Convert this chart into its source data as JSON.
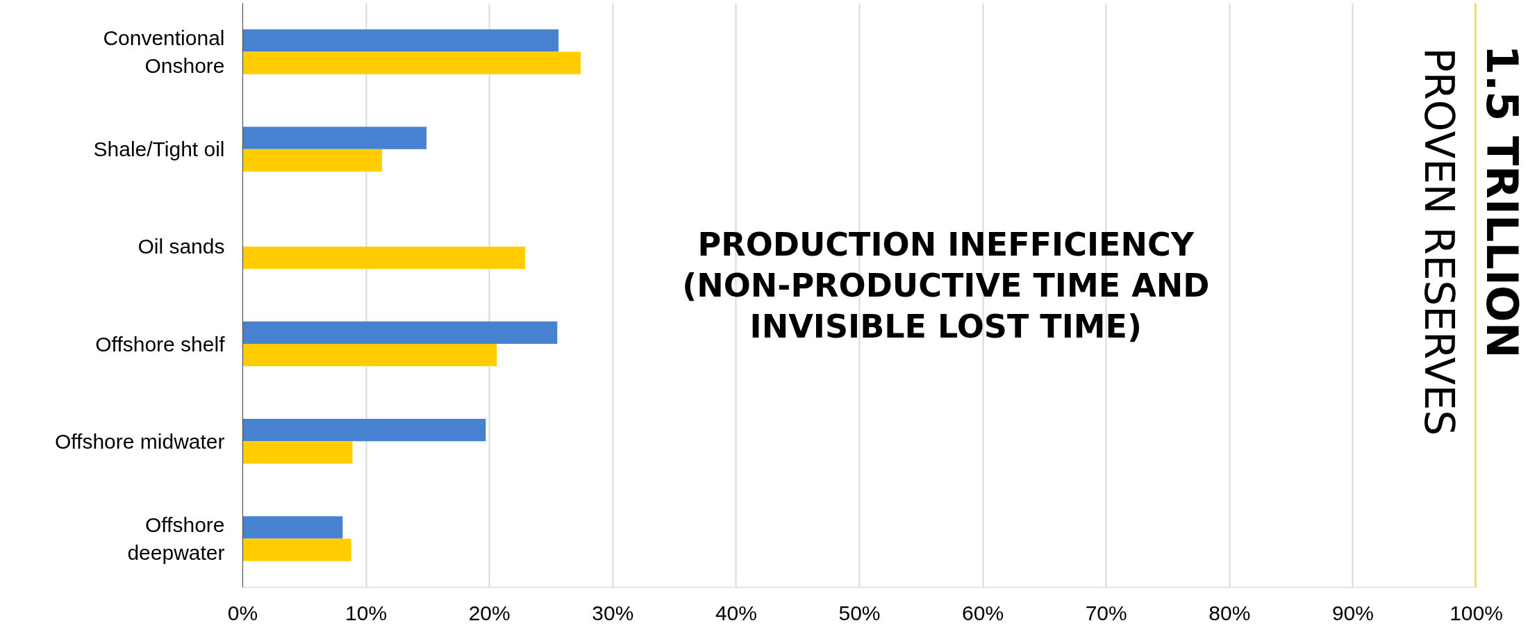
{
  "chart_data": {
    "type": "bar",
    "orientation": "horizontal",
    "categories": [
      "Conventional\nOnshore",
      "Shale/Tight oil",
      "Oil sands",
      "Offshore shelf",
      "Offshore midwater",
      "Offshore\ndeepwater"
    ],
    "series": [
      {
        "color": "#4682d0",
        "values": [
          25.6,
          14.9,
          null,
          25.5,
          19.7,
          8.1
        ]
      },
      {
        "color": "#ffcd00",
        "values": [
          27.4,
          11.3,
          22.9,
          20.6,
          8.9,
          8.8
        ]
      }
    ],
    "xlim": [
      0,
      100
    ],
    "xticks": [
      {
        "value": 0,
        "label": "0%"
      },
      {
        "value": 10,
        "label": "10%"
      },
      {
        "value": 20,
        "label": "20%"
      },
      {
        "value": 30,
        "label": "30%"
      },
      {
        "value": 40,
        "label": "40%"
      },
      {
        "value": 50,
        "label": "50%"
      },
      {
        "value": 60,
        "label": "60%"
      },
      {
        "value": 70,
        "label": "70%"
      },
      {
        "value": 80,
        "label": "80%"
      },
      {
        "value": 90,
        "label": "90%"
      },
      {
        "value": 100,
        "label": "100%"
      }
    ],
    "grid": "x",
    "ref_lines": [
      {
        "axis": "x",
        "value": 100,
        "color": "#ffcd00"
      }
    ],
    "annotations": [
      "PRODUCTION INEFFICIENCY\n(NON-PRODUCTIVE TIME AND\nINVISIBLE LOST TIME)",
      "PROVEN RESERVES",
      "1.5 TRILLION"
    ]
  }
}
